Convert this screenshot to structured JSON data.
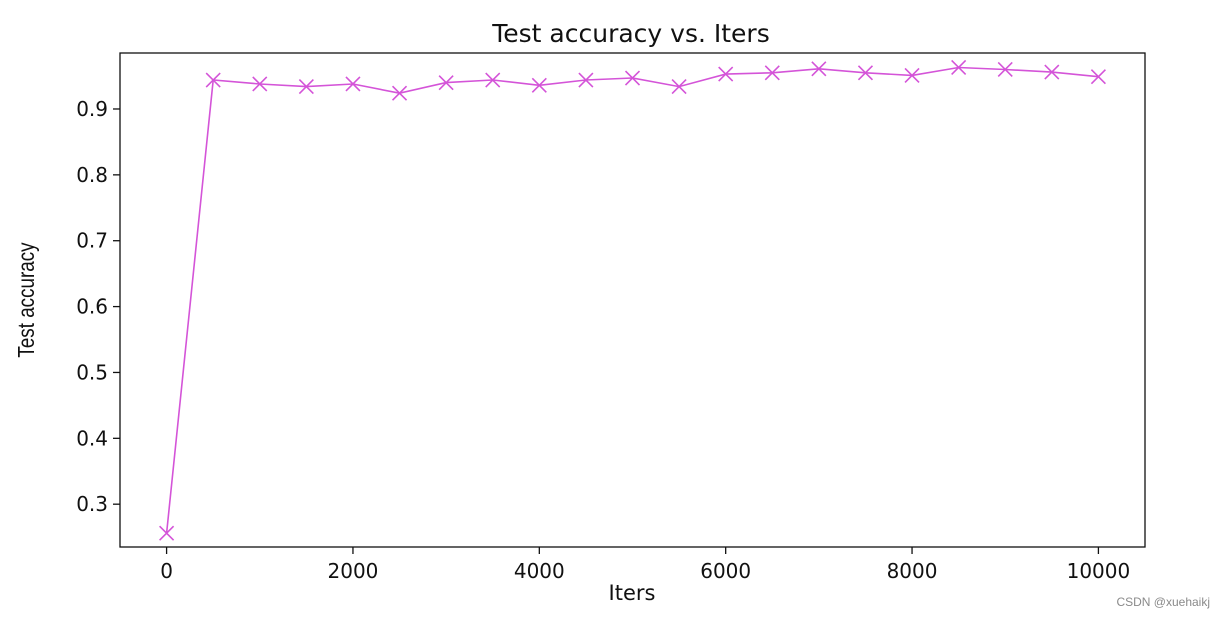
{
  "chart_data": {
    "type": "line",
    "title": "Test accuracy  vs. Iters",
    "xlabel": "Iters",
    "ylabel": "Test accuracy",
    "xlim": [
      -500,
      10500
    ],
    "ylim": [
      0.235,
      0.985
    ],
    "xticks": [
      0,
      2000,
      4000,
      6000,
      8000,
      10000
    ],
    "yticks": [
      0.3,
      0.4,
      0.5,
      0.6,
      0.7,
      0.8,
      0.9
    ],
    "xtick_labels": [
      "0",
      "2000",
      "4000",
      "6000",
      "8000",
      "10000"
    ],
    "ytick_labels": [
      "0.3",
      "0.4",
      "0.5",
      "0.6",
      "0.7",
      "0.8",
      "0.9"
    ],
    "grid": false,
    "marker": "x",
    "color": "#d454d8",
    "series": [
      {
        "x": [
          0,
          500,
          1000,
          1500,
          2000,
          2500,
          3000,
          3500,
          4000,
          4500,
          5000,
          5500,
          6000,
          6500,
          7000,
          7500,
          8000,
          8500,
          9000,
          9500,
          10000
        ],
        "y": [
          0.256,
          0.944,
          0.938,
          0.934,
          0.938,
          0.924,
          0.94,
          0.944,
          0.936,
          0.944,
          0.947,
          0.934,
          0.953,
          0.955,
          0.961,
          0.955,
          0.951,
          0.963,
          0.96,
          0.956,
          0.949
        ]
      }
    ]
  },
  "watermark": "CSDN @xuehaikj"
}
